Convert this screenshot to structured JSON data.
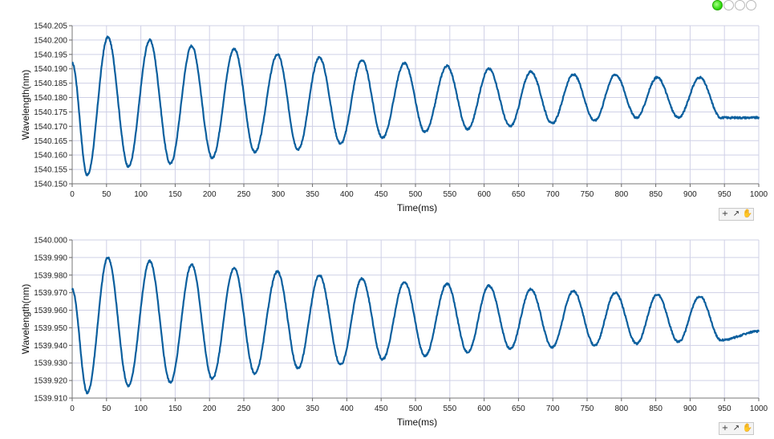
{
  "status_leds": [
    {
      "name": "led-1",
      "on": true
    },
    {
      "name": "led-2",
      "on": false
    },
    {
      "name": "led-3",
      "on": false
    },
    {
      "name": "led-4",
      "on": false
    }
  ],
  "graph_palette": {
    "tools": [
      "zoom-icon",
      "pan-icon",
      "hand-icon"
    ],
    "glyphs": [
      "+",
      "↗",
      "✋"
    ]
  },
  "chart_data": [
    {
      "type": "line",
      "xlabel": "Time(ms)",
      "ylabel": "Wavelength(nm)",
      "xlim": [
        0,
        1000
      ],
      "ylim": [
        1540.15,
        1540.205
      ],
      "x_ticks": [
        "0",
        "50",
        "100",
        "150",
        "200",
        "250",
        "300",
        "350",
        "400",
        "450",
        "500",
        "550",
        "600",
        "650",
        "700",
        "750",
        "800",
        "850",
        "900",
        "950",
        "1000"
      ],
      "y_ticks": [
        "1540.150",
        "1540.155",
        "1540.160",
        "1540.165",
        "1540.170",
        "1540.175",
        "1540.180",
        "1540.185",
        "1540.190",
        "1540.195",
        "1540.200",
        "1540.205"
      ],
      "grid": true,
      "color": "#0b5f9e",
      "series": [
        {
          "x": [
            0,
            22,
            52,
            82,
            113,
            143,
            174,
            204,
            236,
            266,
            299,
            329,
            360,
            391,
            422,
            452,
            484,
            514,
            546,
            576,
            607,
            638,
            668,
            699,
            730,
            761,
            791,
            822,
            852,
            883,
            914,
            945,
            1000
          ],
          "y": [
            1540.192,
            1540.153,
            1540.201,
            1540.156,
            1540.2,
            1540.157,
            1540.198,
            1540.159,
            1540.197,
            1540.161,
            1540.195,
            1540.162,
            1540.194,
            1540.164,
            1540.193,
            1540.166,
            1540.192,
            1540.168,
            1540.191,
            1540.169,
            1540.19,
            1540.17,
            1540.189,
            1540.171,
            1540.188,
            1540.172,
            1540.188,
            1540.173,
            1540.187,
            1540.173,
            1540.187,
            1540.173,
            1540.173
          ]
        }
      ]
    },
    {
      "type": "line",
      "xlabel": "Time(ms)",
      "ylabel": "Wavelength(nm)",
      "xlim": [
        0,
        1000
      ],
      "ylim": [
        1539.91,
        1540.0
      ],
      "x_ticks": [
        "0",
        "50",
        "100",
        "150",
        "200",
        "250",
        "300",
        "350",
        "400",
        "450",
        "500",
        "550",
        "600",
        "650",
        "700",
        "750",
        "800",
        "850",
        "900",
        "950",
        "1000"
      ],
      "y_ticks": [
        "1539.910",
        "1539.920",
        "1539.930",
        "1539.940",
        "1539.950",
        "1539.960",
        "1539.970",
        "1539.980",
        "1539.990",
        "1540.000"
      ],
      "grid": true,
      "color": "#0b5f9e",
      "series": [
        {
          "x": [
            0,
            22,
            52,
            82,
            113,
            143,
            174,
            204,
            236,
            266,
            299,
            329,
            360,
            391,
            422,
            452,
            484,
            514,
            546,
            576,
            607,
            638,
            668,
            699,
            730,
            761,
            791,
            822,
            852,
            883,
            914,
            945,
            1000
          ],
          "y": [
            1539.972,
            1539.913,
            1539.99,
            1539.917,
            1539.988,
            1539.919,
            1539.986,
            1539.921,
            1539.984,
            1539.924,
            1539.982,
            1539.927,
            1539.98,
            1539.929,
            1539.978,
            1539.932,
            1539.976,
            1539.934,
            1539.975,
            1539.936,
            1539.974,
            1539.938,
            1539.972,
            1539.939,
            1539.971,
            1539.94,
            1539.97,
            1539.941,
            1539.969,
            1539.942,
            1539.968,
            1539.943,
            1539.948
          ]
        }
      ]
    }
  ]
}
